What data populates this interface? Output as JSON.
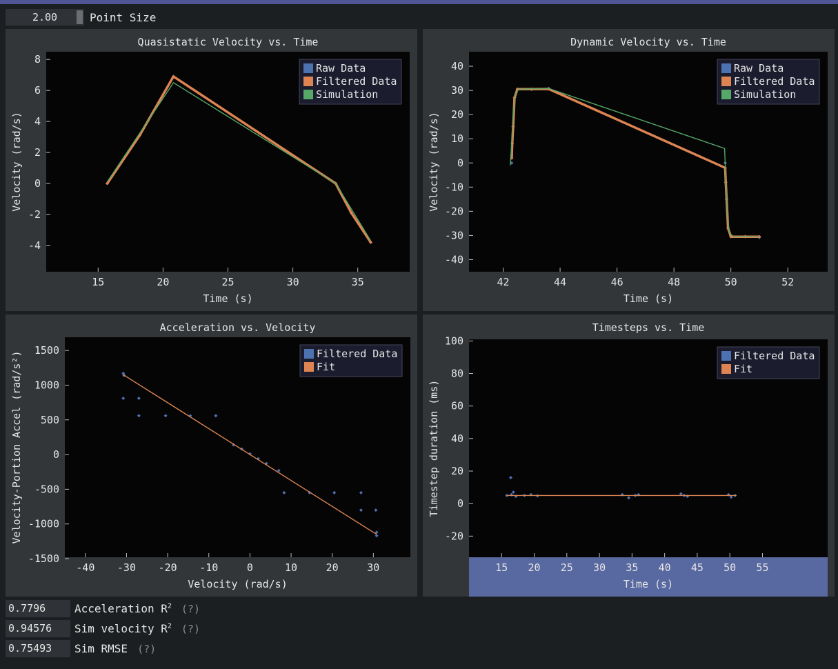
{
  "toolbar": {
    "point_size_value": "2.00",
    "point_size_label": "Point Size"
  },
  "stats": [
    {
      "value": "0.7796",
      "label": "Acceleration R",
      "sup": "2",
      "help": "(?)"
    },
    {
      "value": "0.94576",
      "label": "Sim velocity R",
      "sup": "2",
      "help": "(?)"
    },
    {
      "value": "0.75493",
      "label": "Sim RMSE",
      "sup": "",
      "help": "(?)"
    }
  ],
  "colors": {
    "raw": "#4c72b0",
    "filtered": "#dd8452",
    "sim": "#55a868",
    "plot_bg": "#050505",
    "panel": "#323638",
    "legend_bg": "#1b1c2e",
    "hover": "#5868a0"
  },
  "chart_data": [
    {
      "type": "scatter",
      "title": "Quasistatic Velocity vs. Time",
      "xlabel": "Time (s)",
      "ylabel": "Velocity (rad/s)",
      "xlim": [
        11,
        39
      ],
      "ylim": [
        -5.7,
        8.5
      ],
      "xticks": [
        15,
        20,
        25,
        30,
        35
      ],
      "yticks": [
        -4,
        -2,
        0,
        2,
        4,
        6,
        8
      ],
      "legend": [
        "Raw Data",
        "Filtered Data",
        "Simulation"
      ],
      "legend_position": "top-right",
      "series": [
        {
          "name": "Raw Data",
          "color": "#4c72b0",
          "x": [
            15.7,
            18.2,
            20.8,
            33.3,
            34.5,
            36.0
          ],
          "y": [
            0.0,
            3.1,
            6.9,
            0.0,
            -1.9,
            -3.8
          ]
        },
        {
          "name": "Filtered Data",
          "color": "#dd8452",
          "x": [
            15.7,
            18.2,
            20.8,
            33.3,
            34.5,
            36.0
          ],
          "y": [
            0.0,
            3.1,
            6.9,
            0.0,
            -1.9,
            -3.8
          ]
        },
        {
          "name": "Simulation",
          "color": "#55a868",
          "x": [
            15.7,
            20.8,
            33.3,
            36.0
          ],
          "y": [
            0.1,
            6.5,
            0.0,
            -3.7
          ]
        }
      ]
    },
    {
      "type": "scatter",
      "title": "Dynamic Velocity vs. Time",
      "xlabel": "Time (s)",
      "ylabel": "Velocity (rad/s)",
      "xlim": [
        40.8,
        53.4
      ],
      "ylim": [
        -45,
        46
      ],
      "xticks": [
        42,
        44,
        46,
        48,
        50,
        52
      ],
      "yticks": [
        -40,
        -30,
        -20,
        -10,
        0,
        10,
        20,
        30,
        40
      ],
      "legend": [
        "Raw Data",
        "Filtered Data",
        "Simulation"
      ],
      "legend_position": "top-right",
      "series": [
        {
          "name": "Raw Data",
          "color": "#4c72b0",
          "x": [
            42.3,
            42.3,
            42.35,
            42.4,
            42.5,
            43.0,
            43.6,
            49.8,
            49.82,
            49.85,
            49.9,
            50.0,
            50.5,
            51.0
          ],
          "y": [
            0,
            3,
            15,
            27,
            30.5,
            30.5,
            30.8,
            0,
            -8,
            -15,
            -27,
            -30.5,
            -30.5,
            -30.8
          ]
        },
        {
          "name": "Filtered Data",
          "color": "#dd8452",
          "x": [
            42.3,
            42.32,
            42.35,
            42.4,
            42.5,
            43.0,
            43.6,
            49.8,
            49.82,
            49.85,
            49.9,
            50.0,
            50.5,
            51.0
          ],
          "y": [
            2,
            8,
            15,
            27,
            30.5,
            30.5,
            30.6,
            -2,
            -8,
            -15,
            -27,
            -30.5,
            -30.5,
            -30.5
          ]
        },
        {
          "name": "Simulation",
          "color": "#55a868",
          "x": [
            42.25,
            42.3,
            42.35,
            42.42,
            42.55,
            43.6,
            49.78,
            49.83,
            49.88,
            49.95,
            50.1,
            51.0
          ],
          "y": [
            -1,
            8,
            20,
            28.5,
            30.5,
            30.8,
            6,
            -10,
            -22,
            -29,
            -30.5,
            -30.5
          ]
        }
      ]
    },
    {
      "type": "scatter",
      "title": "Acceleration vs. Velocity",
      "xlabel": "Velocity (rad/s)",
      "ylabel": "Velocity-Portion Accel (rad/s²)",
      "xlim": [
        -45,
        39
      ],
      "ylim": [
        -1480,
        1690
      ],
      "xticks": [
        -40,
        -30,
        -20,
        -10,
        0,
        10,
        20,
        30
      ],
      "yticks": [
        -1500,
        -1000,
        -500,
        0,
        500,
        1000,
        1500
      ],
      "legend": [
        "Filtered Data",
        "Fit"
      ],
      "legend_position": "top-right",
      "series": [
        {
          "name": "Filtered Data",
          "color": "#4c72b0",
          "x": [
            -30.8,
            -30.6,
            -30.8,
            -27,
            -27,
            -20.5,
            -14.5,
            -8.3,
            -4,
            -2,
            0,
            2,
            4,
            7,
            8.3,
            14.5,
            20.5,
            27,
            27,
            30.6,
            30.8,
            30.8
          ],
          "y": [
            1170,
            1140,
            810,
            810,
            560,
            560,
            560,
            560,
            140,
            80,
            10,
            -60,
            -130,
            -230,
            -550,
            -550,
            -550,
            -550,
            -800,
            -800,
            -1120,
            -1170
          ]
        },
        {
          "name": "Fit",
          "color": "#dd8452",
          "x": [
            -30.8,
            30.8
          ],
          "y": [
            1150,
            -1150
          ]
        }
      ]
    },
    {
      "type": "scatter",
      "title": "Timesteps vs. Time",
      "xlabel": "Time (s)",
      "ylabel": "Timestep duration (ms)",
      "xlim": [
        10,
        65
      ],
      "ylim": [
        -33,
        101
      ],
      "xticks": [
        15,
        20,
        25,
        30,
        35,
        40,
        45,
        50,
        55
      ],
      "yticks": [
        -20,
        0,
        20,
        40,
        60,
        80,
        100
      ],
      "legend": [
        "Filtered Data",
        "Fit"
      ],
      "legend_position": "top-right",
      "series": [
        {
          "name": "Filtered Data",
          "color": "#4c72b0",
          "x": [
            15.8,
            16.5,
            17.2,
            18.5,
            19.5,
            20.5,
            16.4,
            16.8,
            33.5,
            34.5,
            35.5,
            36.0,
            42.5,
            43.0,
            43.5,
            49.8,
            50.2,
            50.8
          ],
          "y": [
            5,
            5.5,
            4.5,
            5,
            5.5,
            4.8,
            16,
            7,
            5.5,
            3.5,
            5,
            5.5,
            6,
            5,
            4.5,
            5.5,
            4,
            5
          ]
        },
        {
          "name": "Fit",
          "color": "#dd8452",
          "x": [
            15.8,
            51.0
          ],
          "y": [
            5,
            5
          ]
        }
      ]
    }
  ]
}
